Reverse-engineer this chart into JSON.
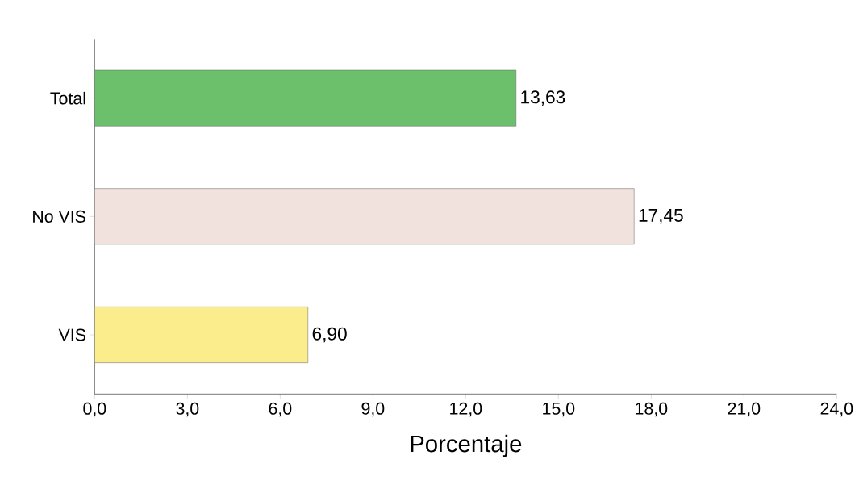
{
  "chart_data": {
    "type": "bar",
    "orientation": "horizontal",
    "xlabel": "Porcentaje",
    "categories": [
      "Total",
      "No VIS",
      "VIS"
    ],
    "values": [
      13.63,
      17.45,
      6.9
    ],
    "colors": [
      "#6cc06c",
      "#f2e2dd",
      "#fbec8c"
    ],
    "value_labels": [
      "13,63",
      "17,45",
      "6,90"
    ],
    "xlim": [
      0,
      24
    ],
    "xticks": [
      {
        "value": 0,
        "label": "0,0"
      },
      {
        "value": 3,
        "label": "3,0"
      },
      {
        "value": 6,
        "label": "6,0"
      },
      {
        "value": 9,
        "label": "9,0"
      },
      {
        "value": 12,
        "label": "12,0"
      },
      {
        "value": 15,
        "label": "15,0"
      },
      {
        "value": 18,
        "label": "18,0"
      },
      {
        "value": 21,
        "label": "21,0"
      },
      {
        "value": 24,
        "label": "24,0"
      }
    ],
    "grid": false
  }
}
